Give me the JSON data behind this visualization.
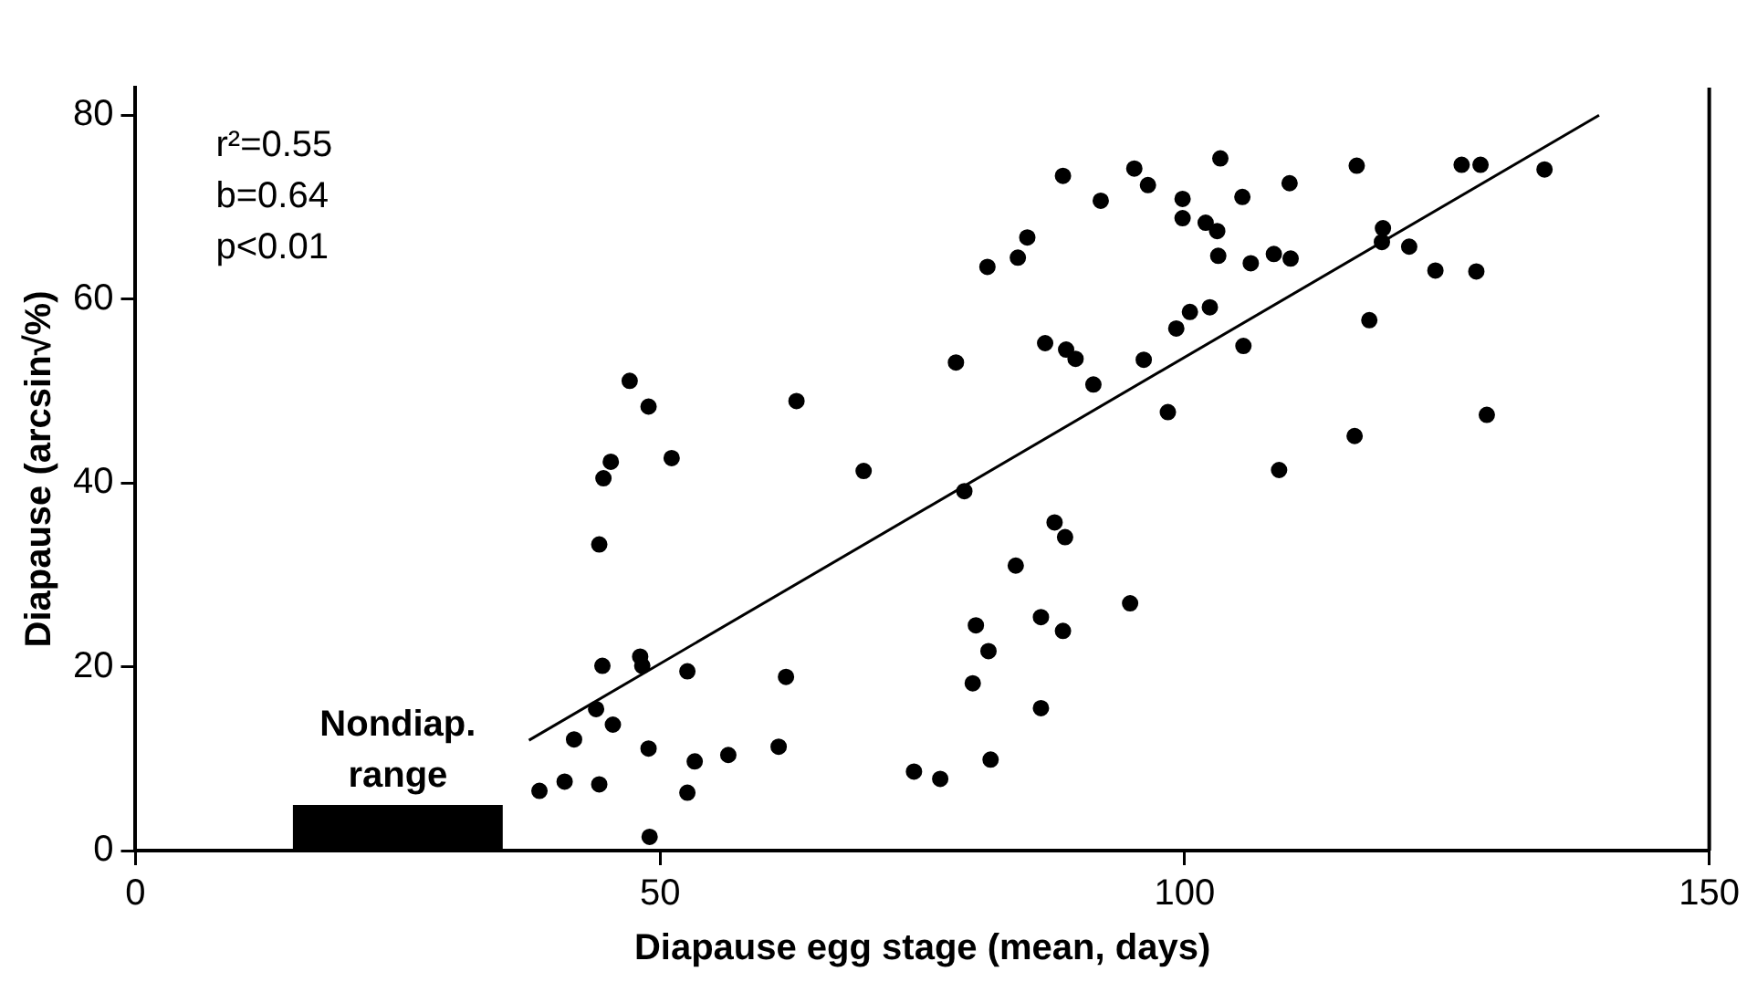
{
  "chart_data": {
    "type": "scatter",
    "xlabel": "Diapause egg stage (mean, days)",
    "ylabel": "Diapause (arcsin√%)",
    "xlim": [
      0,
      150
    ],
    "ylim": [
      0,
      83
    ],
    "xticks": [
      0,
      50,
      100,
      150
    ],
    "yticks": [
      0,
      20,
      40,
      60,
      80
    ],
    "grid": false,
    "legend": false,
    "marker": "circle",
    "annotations": [
      "r²=0.55",
      "b=0.64",
      "p<0.01"
    ],
    "bands": [
      {
        "axis": "x",
        "from": 15,
        "to": 35,
        "label": "Nondiap. range",
        "color": "#000000"
      }
    ],
    "series": [
      {
        "color": "#000000",
        "x": [
          47.1,
          48.9,
          63.0,
          45.3,
          44.6,
          51.1,
          69.4,
          44.2,
          44.5,
          48.1,
          48.3,
          52.6,
          62.0,
          43.9,
          45.5,
          41.8,
          48.9,
          53.3,
          56.5,
          61.3,
          74.2,
          38.5,
          40.9,
          44.2,
          52.6,
          49.0,
          88.4,
          95.2,
          96.5,
          103.4,
          92.0,
          99.8,
          105.5,
          110.0,
          99.8,
          102.0,
          103.1,
          85.0,
          84.1,
          81.2,
          103.2,
          106.3,
          108.5,
          110.1,
          86.7,
          88.7,
          89.6,
          91.3,
          96.1,
          99.2,
          100.5,
          102.4,
          105.6,
          78.2,
          98.4,
          109.0,
          79.0,
          87.6,
          88.6,
          83.9,
          80.1,
          86.3,
          88.4,
          81.3,
          94.8,
          79.8,
          86.3,
          81.5,
          76.7,
          116.4,
          126.4,
          128.2,
          134.3,
          118.9,
          118.8,
          121.4,
          123.9,
          127.8,
          117.6,
          128.8,
          116.2
        ],
        "values": [
          51.1,
          48.3,
          48.9,
          42.3,
          40.5,
          42.7,
          41.3,
          33.3,
          20.1,
          21.1,
          20.1,
          19.5,
          18.9,
          15.4,
          13.7,
          12.1,
          11.1,
          9.7,
          10.4,
          11.3,
          8.6,
          6.5,
          7.5,
          7.2,
          6.3,
          1.5,
          73.4,
          74.2,
          72.4,
          75.3,
          70.7,
          70.9,
          71.1,
          72.6,
          68.8,
          68.3,
          67.4,
          66.7,
          64.5,
          63.5,
          64.7,
          63.9,
          64.9,
          64.4,
          55.2,
          54.5,
          53.5,
          50.7,
          53.4,
          56.8,
          58.6,
          59.1,
          54.9,
          53.1,
          47.7,
          41.4,
          39.1,
          35.7,
          34.1,
          31.0,
          24.5,
          25.4,
          23.9,
          21.7,
          26.9,
          18.2,
          15.5,
          9.9,
          7.8,
          74.5,
          74.6,
          74.6,
          74.1,
          67.7,
          66.2,
          65.7,
          63.1,
          63.0,
          57.7,
          47.4,
          45.1
        ]
      },
      {
        "type": "line",
        "color": "#000000",
        "marker": "none",
        "x": [
          37.5,
          139.5
        ],
        "values": [
          12,
          80
        ]
      }
    ]
  }
}
